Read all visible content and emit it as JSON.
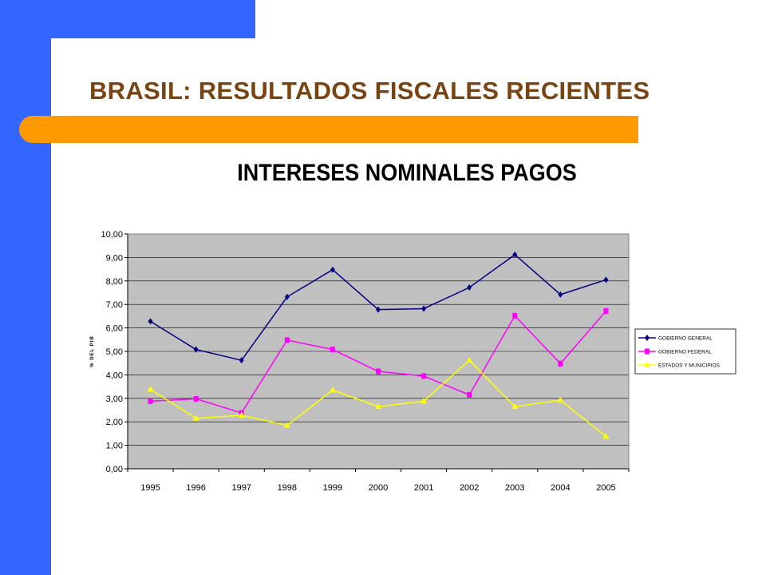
{
  "slide": {
    "title": "BRASIL:   RESULTADOS FISCALES RECIENTES"
  },
  "colors": {
    "side_bar": "#3366ff",
    "accent_bar": "#ff9900",
    "title": "#7a4312",
    "plot_bg": "#c0c0c0"
  },
  "chart_data": {
    "type": "line",
    "title": "INTERESES NOMINALES PAGOS",
    "xlabel": "",
    "ylabel": "% DEL PIB",
    "ylim": [
      0,
      10
    ],
    "ytick_step": 1,
    "ytick_labels": [
      "0,00",
      "1,00",
      "2,00",
      "3,00",
      "4,00",
      "5,00",
      "6,00",
      "7,00",
      "8,00",
      "9,00",
      "10,00"
    ],
    "grid": true,
    "legend_position": "right",
    "categories": [
      "1995",
      "1996",
      "1997",
      "1998",
      "1999",
      "2000",
      "2001",
      "2002",
      "2003",
      "2004",
      "2005"
    ],
    "series": [
      {
        "name": "GOBIERNO GENERAL",
        "color": "#000080",
        "marker": "diamond",
        "values": [
          6.28,
          5.08,
          4.62,
          7.32,
          8.48,
          6.78,
          6.82,
          7.72,
          9.12,
          7.42,
          8.05
        ]
      },
      {
        "name": "GOBIERNO FEDERAL",
        "color": "#ff00ff",
        "marker": "square",
        "values": [
          2.88,
          2.98,
          2.38,
          5.48,
          5.08,
          4.15,
          3.95,
          3.15,
          6.52,
          4.48,
          6.72
        ]
      },
      {
        "name": "ESTADOS Y MUNICIPIOS",
        "color": "#ffff00",
        "marker": "triangle",
        "values": [
          3.38,
          2.15,
          2.28,
          1.85,
          3.35,
          2.65,
          2.88,
          4.62,
          2.65,
          2.92,
          1.38
        ]
      }
    ]
  }
}
